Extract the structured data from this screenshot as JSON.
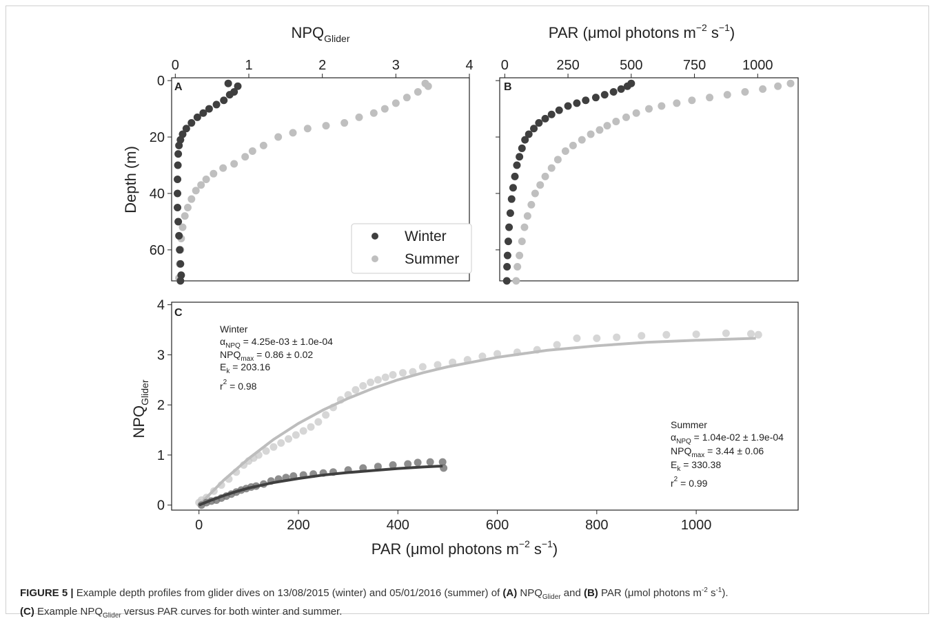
{
  "chart_data": [
    {
      "panel": "A",
      "type": "scatter",
      "xlabel_main": "NPQ",
      "xlabel_sub": "Glider",
      "ylabel": "Depth (m)",
      "x_ticks": [
        "0",
        "1",
        "2",
        "3",
        "4"
      ],
      "y_ticks": [
        "0",
        "20",
        "40",
        "60"
      ],
      "xlim": [
        -0.05,
        4
      ],
      "ylim": [
        71,
        -1
      ],
      "y_inverted": true,
      "legend_position": "lower-right",
      "series": [
        {
          "name": "Winter",
          "color": "#3f3f3f",
          "points": [
            [
              0.72,
              1
            ],
            [
              0.85,
              2
            ],
            [
              0.8,
              4
            ],
            [
              0.74,
              5
            ],
            [
              0.66,
              7
            ],
            [
              0.56,
              8.5
            ],
            [
              0.46,
              10
            ],
            [
              0.38,
              11.5
            ],
            [
              0.3,
              13
            ],
            [
              0.22,
              15
            ],
            [
              0.15,
              17
            ],
            [
              0.1,
              19
            ],
            [
              0.07,
              21
            ],
            [
              0.05,
              23
            ],
            [
              0.04,
              26
            ],
            [
              0.035,
              30
            ],
            [
              0.03,
              35
            ],
            [
              0.03,
              40
            ],
            [
              0.03,
              45
            ],
            [
              0.04,
              50
            ],
            [
              0.05,
              55
            ],
            [
              0.06,
              60
            ],
            [
              0.07,
              65
            ],
            [
              0.08,
              69
            ],
            [
              0.07,
              71
            ]
          ]
        },
        {
          "name": "Summer",
          "color": "#bfbfbf",
          "points": [
            [
              3.4,
              1
            ],
            [
              3.44,
              2
            ],
            [
              3.3,
              4
            ],
            [
              3.15,
              6
            ],
            [
              3.0,
              8
            ],
            [
              2.85,
              10
            ],
            [
              2.7,
              11.5
            ],
            [
              2.5,
              13
            ],
            [
              2.3,
              15
            ],
            [
              2.05,
              16
            ],
            [
              1.8,
              17
            ],
            [
              1.6,
              18.5
            ],
            [
              1.4,
              20
            ],
            [
              1.2,
              23
            ],
            [
              1.05,
              25
            ],
            [
              0.95,
              27
            ],
            [
              0.8,
              29.5
            ],
            [
              0.65,
              31
            ],
            [
              0.52,
              33
            ],
            [
              0.42,
              35
            ],
            [
              0.35,
              37
            ],
            [
              0.28,
              39
            ],
            [
              0.22,
              42
            ],
            [
              0.17,
              45
            ],
            [
              0.13,
              48
            ],
            [
              0.1,
              52
            ],
            [
              0.08,
              56
            ],
            [
              0.07,
              60
            ],
            [
              0.06,
              65
            ],
            [
              0.05,
              70
            ]
          ]
        }
      ]
    },
    {
      "panel": "B",
      "type": "scatter",
      "xlabel": "PAR (μmol photons m^-2 s^-1)",
      "x_ticks": [
        "0",
        "250",
        "500",
        "750",
        "1000"
      ],
      "xlim": [
        -20,
        1160
      ],
      "ylim": [
        71,
        -1
      ],
      "y_inverted": true,
      "series": [
        {
          "name": "Winter",
          "color": "#3f3f3f",
          "points": [
            [
              500,
              1
            ],
            [
              485,
              2
            ],
            [
              460,
              3
            ],
            [
              430,
              4
            ],
            [
              395,
              5
            ],
            [
              360,
              6
            ],
            [
              320,
              7
            ],
            [
              285,
              8
            ],
            [
              250,
              9
            ],
            [
              215,
              10.5
            ],
            [
              185,
              12
            ],
            [
              160,
              13.5
            ],
            [
              135,
              15
            ],
            [
              115,
              17
            ],
            [
              95,
              19
            ],
            [
              80,
              21
            ],
            [
              68,
              24
            ],
            [
              58,
              27
            ],
            [
              48,
              30
            ],
            [
              40,
              34
            ],
            [
              33,
              38
            ],
            [
              27,
              42
            ],
            [
              22,
              47
            ],
            [
              17,
              52
            ],
            [
              14,
              57
            ],
            [
              11,
              62
            ],
            [
              9,
              66
            ],
            [
              8,
              71
            ]
          ]
        },
        {
          "name": "Summer",
          "color": "#bfbfbf",
          "points": [
            [
              1130,
              1
            ],
            [
              1080,
              2
            ],
            [
              1020,
              3
            ],
            [
              950,
              4
            ],
            [
              880,
              5
            ],
            [
              810,
              6
            ],
            [
              740,
              7
            ],
            [
              680,
              8
            ],
            [
              620,
              9
            ],
            [
              570,
              10
            ],
            [
              520,
              11.5
            ],
            [
              480,
              13
            ],
            [
              440,
              14.5
            ],
            [
              405,
              16
            ],
            [
              375,
              17.5
            ],
            [
              340,
              19
            ],
            [
              305,
              21
            ],
            [
              270,
              23
            ],
            [
              240,
              25
            ],
            [
              210,
              28
            ],
            [
              185,
              31
            ],
            [
              160,
              34
            ],
            [
              140,
              37
            ],
            [
              120,
              40
            ],
            [
              105,
              44
            ],
            [
              90,
              48
            ],
            [
              78,
              52
            ],
            [
              68,
              57
            ],
            [
              58,
              62
            ],
            [
              50,
              66
            ],
            [
              45,
              71
            ]
          ]
        }
      ]
    },
    {
      "panel": "C",
      "type": "scatter",
      "xlabel": "PAR (μmol photons m^-2 s^-1)",
      "ylabel_main": "NPQ",
      "ylabel_sub": "Glider",
      "x_ticks": [
        "0",
        "200",
        "400",
        "600",
        "800",
        "1000"
      ],
      "y_ticks": [
        "0",
        "1",
        "2",
        "3",
        "4"
      ],
      "xlim": [
        -55,
        1205
      ],
      "ylim": [
        -0.1,
        4.05
      ],
      "series": [
        {
          "name": "Winter",
          "color": "#3f3f3f",
          "points": [
            [
              5,
              0.0
            ],
            [
              15,
              0.05
            ],
            [
              25,
              0.08
            ],
            [
              35,
              0.1
            ],
            [
              45,
              0.14
            ],
            [
              55,
              0.18
            ],
            [
              65,
              0.22
            ],
            [
              75,
              0.26
            ],
            [
              85,
              0.3
            ],
            [
              95,
              0.33
            ],
            [
              105,
              0.36
            ],
            [
              115,
              0.38
            ],
            [
              130,
              0.42
            ],
            [
              145,
              0.48
            ],
            [
              160,
              0.52
            ],
            [
              175,
              0.55
            ],
            [
              190,
              0.58
            ],
            [
              210,
              0.6
            ],
            [
              230,
              0.62
            ],
            [
              250,
              0.64
            ],
            [
              270,
              0.66
            ],
            [
              300,
              0.7
            ],
            [
              330,
              0.74
            ],
            [
              360,
              0.77
            ],
            [
              390,
              0.8
            ],
            [
              420,
              0.82
            ],
            [
              440,
              0.85
            ],
            [
              465,
              0.86
            ],
            [
              490,
              0.86
            ],
            [
              492,
              0.74
            ]
          ],
          "fit": [
            [
              0,
              0
            ],
            [
              25,
              0.1
            ],
            [
              50,
              0.19
            ],
            [
              75,
              0.27
            ],
            [
              100,
              0.34
            ],
            [
              150,
              0.45
            ],
            [
              200,
              0.53
            ],
            [
              250,
              0.6
            ],
            [
              300,
              0.65
            ],
            [
              350,
              0.69
            ],
            [
              400,
              0.73
            ],
            [
              450,
              0.76
            ],
            [
              490,
              0.78
            ]
          ],
          "annotation": {
            "title": "Winter",
            "alpha": "α",
            "alpha_sub": "NPQ",
            "alpha_val": " = 4.25e-03 ± 1.0e-04",
            "npq": "NPQ",
            "npq_sub": "max",
            "npq_val": " = 0.86 ± 0.02",
            "ek": "E",
            "ek_sub": "k",
            "ek_val": " = 203.16",
            "r": "r",
            "r_sup": "2",
            "r_val": " = 0.98"
          }
        },
        {
          "name": "Summer",
          "color": "#c8c8c8",
          "points": [
            [
              0,
              0.05
            ],
            [
              5,
              0.1
            ],
            [
              15,
              0.15
            ],
            [
              30,
              0.28
            ],
            [
              45,
              0.4
            ],
            [
              60,
              0.52
            ],
            [
              75,
              0.66
            ],
            [
              90,
              0.8
            ],
            [
              100,
              0.88
            ],
            [
              110,
              0.94
            ],
            [
              120,
              1.0
            ],
            [
              135,
              1.08
            ],
            [
              150,
              1.16
            ],
            [
              165,
              1.24
            ],
            [
              180,
              1.32
            ],
            [
              195,
              1.4
            ],
            [
              210,
              1.48
            ],
            [
              225,
              1.56
            ],
            [
              240,
              1.66
            ],
            [
              255,
              1.8
            ],
            [
              270,
              1.95
            ],
            [
              285,
              2.1
            ],
            [
              300,
              2.2
            ],
            [
              315,
              2.3
            ],
            [
              330,
              2.38
            ],
            [
              345,
              2.45
            ],
            [
              360,
              2.5
            ],
            [
              375,
              2.55
            ],
            [
              390,
              2.6
            ],
            [
              410,
              2.64
            ],
            [
              430,
              2.66
            ],
            [
              450,
              2.76
            ],
            [
              480,
              2.8
            ],
            [
              510,
              2.85
            ],
            [
              540,
              2.9
            ],
            [
              570,
              2.97
            ],
            [
              600,
              3.02
            ],
            [
              640,
              3.05
            ],
            [
              680,
              3.1
            ],
            [
              720,
              3.2
            ],
            [
              760,
              3.33
            ],
            [
              800,
              3.33
            ],
            [
              840,
              3.35
            ],
            [
              890,
              3.38
            ],
            [
              940,
              3.4
            ],
            [
              1000,
              3.41
            ],
            [
              1060,
              3.43
            ],
            [
              1110,
              3.42
            ],
            [
              1125,
              3.4
            ]
          ],
          "fit": [
            [
              0,
              0
            ],
            [
              50,
              0.5
            ],
            [
              100,
              0.93
            ],
            [
              150,
              1.31
            ],
            [
              200,
              1.63
            ],
            [
              250,
              1.9
            ],
            [
              300,
              2.13
            ],
            [
              350,
              2.33
            ],
            [
              400,
              2.5
            ],
            [
              450,
              2.64
            ],
            [
              500,
              2.76
            ],
            [
              600,
              2.95
            ],
            [
              700,
              3.09
            ],
            [
              800,
              3.18
            ],
            [
              900,
              3.25
            ],
            [
              1000,
              3.29
            ],
            [
              1120,
              3.33
            ]
          ],
          "annotation": {
            "title": "Summer",
            "alpha": "α",
            "alpha_sub": "NPQ",
            "alpha_val": " = 1.04e-02 ± 1.9e-04",
            "npq": "NPQ",
            "npq_sub": "max",
            "npq_val": " = 3.44 ± 0.06",
            "ek": "E",
            "ek_sub": "k",
            "ek_val": " = 330.38",
            "r": "r",
            "r_sup": "2",
            "r_val": " = 0.99"
          }
        }
      ]
    }
  ],
  "caption": {
    "label": "FIGURE 5 |",
    "text1": " Example depth profiles from glider dives on 13/08/2015 (winter) and 05/01/2016 (summer) of ",
    "a": "(A)",
    "text2": " NPQ",
    "sub1": "Glider",
    "text3": " and ",
    "b": "(B)",
    "text4": " PAR (μmol photons m",
    "sup1": "-2",
    "text5": " s",
    "sup2": "-1",
    "text6": ").",
    "c": "(C)",
    "text7": " Example NPQ",
    "sub2": "Glider",
    "text8": " versus PAR curves for both winter and summer."
  }
}
